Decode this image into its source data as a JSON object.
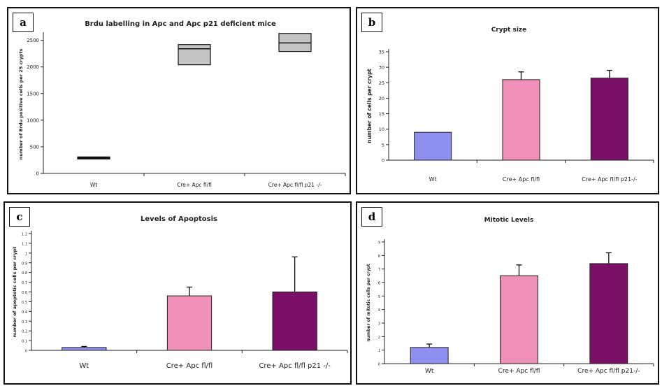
{
  "chart_data": [
    {
      "panel_letter": "a",
      "type": "box",
      "title": "Brdu labelling in Apc and Apc p21 deficient mice",
      "ylabel": "number of Brdu positive cells per 25 crypts",
      "ylim": [
        0,
        2600
      ],
      "yticks": [
        "0",
        "500",
        "1000",
        "1500",
        "2000",
        "2500"
      ],
      "categories": [
        "Wt",
        "Cre+ Apc fl/fl",
        "Cre+ Apc fl/fl p21 -/-"
      ],
      "boxes": [
        {
          "low": 290,
          "median": 300,
          "high": 310
        },
        {
          "low": 2040,
          "median": 2340,
          "high": 2420
        },
        {
          "low": 2290,
          "median": 2450,
          "high": 2630
        }
      ],
      "color": "#c4c4c4"
    },
    {
      "panel_letter": "b",
      "type": "bar",
      "title": "Crypt size",
      "ylabel": "number of cells per crypt",
      "ylim": [
        0,
        35
      ],
      "yticks": [
        "0",
        "5",
        "10",
        "15",
        "20",
        "25",
        "30",
        "35"
      ],
      "categories": [
        "Wt",
        "Cre+ Apc fl/fl",
        "Cre+ Apc fl/fl p21-/-"
      ],
      "values": [
        9,
        26,
        26.5
      ],
      "errors": [
        0,
        2.5,
        2.5
      ],
      "colors": [
        "#8f8ff0",
        "#ef90b8",
        "#7a0f66"
      ]
    },
    {
      "panel_letter": "c",
      "type": "bar",
      "title": "Levels of Apoptosis",
      "ylabel": "number of apoptotic cells per crypt",
      "ylim": [
        0,
        1.2
      ],
      "yticks": [
        "0",
        "0.1",
        "0.2",
        "0.3",
        "0.4",
        "0.5",
        "0.6",
        "0.7",
        "0.8",
        "0.9",
        "1",
        "1.1",
        "1.2"
      ],
      "categories": [
        "Wt",
        "Cre+ Apc fl/fl",
        "Cre+ Apc fl/fl p21 -/-"
      ],
      "values": [
        0.03,
        0.56,
        0.6
      ],
      "errors": [
        0.01,
        0.09,
        0.36
      ],
      "colors": [
        "#8f8ff0",
        "#ef90b8",
        "#7a0f66"
      ]
    },
    {
      "panel_letter": "d",
      "type": "bar",
      "title": "Mitotic Levels",
      "ylabel": "number of mitotic cells per crypt",
      "ylim": [
        0,
        9
      ],
      "yticks": [
        "0",
        "1",
        "2",
        "3",
        "4",
        "5",
        "6",
        "7",
        "8",
        "9"
      ],
      "categories": [
        "Wt",
        "Cre+ Apc fl/fl",
        "Cre+ Apc fl/fl p21-/-"
      ],
      "values": [
        1.2,
        6.5,
        7.4
      ],
      "errors": [
        0.25,
        0.8,
        0.8
      ],
      "colors": [
        "#8f8ff0",
        "#ef90b8",
        "#7a0f66"
      ]
    }
  ]
}
